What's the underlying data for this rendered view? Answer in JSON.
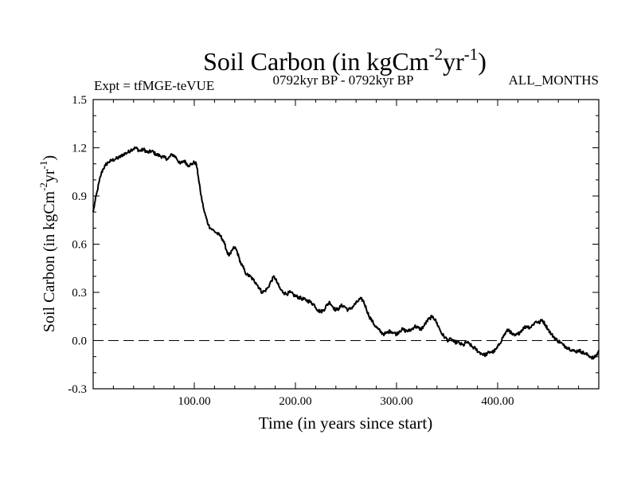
{
  "chart_data": {
    "type": "line",
    "title": {
      "main": "Soil Carbon (in kgCm",
      "sup1": "-2",
      "mid": "yr",
      "sup2": "-1",
      "end": ")"
    },
    "expt_label": "Expt = tfMGE-teVUE",
    "period_label": "0792kyr BP - 0792kyr BP",
    "months_label": "ALL_MONTHS",
    "xlabel": "Time (in years since start)",
    "ylabel": {
      "main": "Soil Carbon (in kgCm",
      "sup1": "-2",
      "mid": "yr",
      "sup2": "-1",
      "end": ")"
    },
    "xlim": [
      0,
      500
    ],
    "ylim": [
      -0.3,
      1.5
    ],
    "x_ticks": [
      {
        "value": 100,
        "label": "100.00"
      },
      {
        "value": 200,
        "label": "200.00"
      },
      {
        "value": 300,
        "label": "300.00"
      },
      {
        "value": 400,
        "label": "400.00"
      }
    ],
    "y_ticks": [
      {
        "value": -0.3,
        "label": "-0.3"
      },
      {
        "value": 0.0,
        "label": "0.0"
      },
      {
        "value": 0.3,
        "label": "0.3"
      },
      {
        "value": 0.6,
        "label": "0.6"
      },
      {
        "value": 0.9,
        "label": "0.9"
      },
      {
        "value": 1.2,
        "label": "1.2"
      },
      {
        "value": 1.5,
        "label": "1.5"
      }
    ],
    "reference_line": {
      "y": 0.0,
      "style": "dashed"
    },
    "series": [
      {
        "name": "Soil Carbon",
        "color": "#000000",
        "x": [
          0,
          2,
          4,
          6,
          8,
          10,
          12,
          15,
          18,
          22,
          26,
          30,
          34,
          38,
          42,
          46,
          50,
          54,
          58,
          62,
          66,
          70,
          74,
          78,
          82,
          86,
          90,
          94,
          98,
          100,
          102,
          104,
          106,
          108,
          110,
          112,
          114,
          116,
          118,
          120,
          122,
          124,
          126,
          128,
          130,
          132,
          134,
          136,
          138,
          140,
          142,
          144,
          146,
          148,
          150,
          152,
          155,
          158,
          161,
          164,
          167,
          170,
          173,
          176,
          179,
          182,
          185,
          188,
          191,
          195,
          199,
          203,
          207,
          211,
          215,
          219,
          222,
          225,
          228,
          231,
          234,
          237,
          240,
          243,
          246,
          249,
          252,
          255,
          258,
          261,
          264,
          267,
          270,
          273,
          276,
          279,
          282,
          285,
          288,
          291,
          294,
          297,
          300,
          303,
          306,
          309,
          312,
          315,
          318,
          321,
          324,
          327,
          330,
          333,
          336,
          339,
          342,
          345,
          348,
          351,
          354,
          357,
          360,
          363,
          366,
          369,
          372,
          375,
          378,
          381,
          384,
          387,
          390,
          393,
          396,
          399,
          402,
          405,
          408,
          411,
          414,
          417,
          420,
          423,
          426,
          429,
          432,
          435,
          438,
          441,
          444,
          447,
          450,
          453,
          456,
          459,
          462,
          465,
          468,
          471,
          474,
          477,
          480,
          483,
          486,
          489,
          492,
          495,
          498,
          500
        ],
        "values": [
          0.8,
          0.87,
          0.93,
          0.99,
          1.04,
          1.07,
          1.09,
          1.11,
          1.12,
          1.13,
          1.14,
          1.16,
          1.17,
          1.19,
          1.2,
          1.18,
          1.19,
          1.17,
          1.18,
          1.16,
          1.15,
          1.14,
          1.13,
          1.16,
          1.14,
          1.1,
          1.12,
          1.09,
          1.1,
          1.11,
          1.1,
          1.02,
          0.93,
          0.86,
          0.8,
          0.76,
          0.72,
          0.7,
          0.69,
          0.68,
          0.67,
          0.66,
          0.65,
          0.63,
          0.6,
          0.56,
          0.53,
          0.54,
          0.57,
          0.58,
          0.56,
          0.52,
          0.48,
          0.46,
          0.43,
          0.41,
          0.4,
          0.38,
          0.36,
          0.33,
          0.3,
          0.31,
          0.33,
          0.37,
          0.4,
          0.36,
          0.32,
          0.3,
          0.29,
          0.3,
          0.28,
          0.27,
          0.26,
          0.25,
          0.24,
          0.22,
          0.19,
          0.18,
          0.19,
          0.22,
          0.24,
          0.21,
          0.19,
          0.2,
          0.22,
          0.21,
          0.19,
          0.2,
          0.22,
          0.24,
          0.26,
          0.25,
          0.2,
          0.15,
          0.12,
          0.09,
          0.07,
          0.05,
          0.04,
          0.05,
          0.06,
          0.05,
          0.04,
          0.06,
          0.07,
          0.06,
          0.06,
          0.07,
          0.09,
          0.08,
          0.07,
          0.09,
          0.12,
          0.14,
          0.15,
          0.12,
          0.08,
          0.04,
          0.02,
          0.0,
          0.01,
          -0.01,
          -0.01,
          -0.02,
          -0.03,
          -0.01,
          -0.02,
          -0.04,
          -0.05,
          -0.07,
          -0.08,
          -0.09,
          -0.08,
          -0.07,
          -0.07,
          -0.05,
          -0.02,
          0.02,
          0.05,
          0.07,
          0.04,
          0.03,
          0.04,
          0.06,
          0.08,
          0.09,
          0.08,
          0.1,
          0.12,
          0.11,
          0.13,
          0.1,
          0.07,
          0.04,
          0.02,
          0.0,
          -0.01,
          -0.03,
          -0.04,
          -0.05,
          -0.06,
          -0.07,
          -0.06,
          -0.07,
          -0.08,
          -0.09,
          -0.1,
          -0.11,
          -0.09,
          -0.06
        ]
      }
    ],
    "grid": false,
    "legend": "none"
  }
}
